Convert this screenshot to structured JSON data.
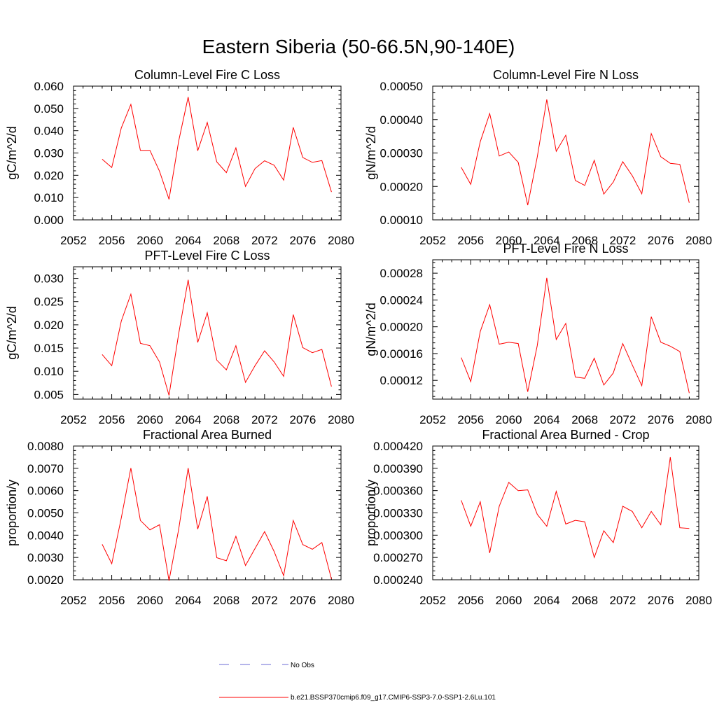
{
  "figure": {
    "title": "Eastern Siberia (50-66.5N,90-140E)"
  },
  "colors": {
    "series": "#ff0000",
    "obs": "#6b6bd6",
    "axis": "#000000"
  },
  "legend": {
    "placement": "bottom-center",
    "entries": [
      {
        "label": "No Obs",
        "style": "dashed",
        "color": "#6b6bd6"
      },
      {
        "label": "b.e21.BSSP370cmip6.f09_g17.CMIP6-SSP3-7.0-SSP1-2.6Lu.101",
        "style": "solid",
        "color": "#ff0000"
      }
    ]
  },
  "chart_data": [
    {
      "type": "line",
      "title": "Column-Level Fire C Loss",
      "ylabel": "gC/m^2/d",
      "xlim": [
        2052,
        2080
      ],
      "ylim": [
        0.0,
        0.06
      ],
      "xticks": [
        "2052",
        "2056",
        "2060",
        "2064",
        "2068",
        "2072",
        "2076",
        "2080"
      ],
      "yticks": [
        "0.000",
        "0.010",
        "0.020",
        "0.030",
        "0.040",
        "0.050",
        "0.060"
      ],
      "x": [
        2055,
        2056,
        2057,
        2058,
        2059,
        2060,
        2061,
        2062,
        2063,
        2064,
        2065,
        2066,
        2067,
        2068,
        2069,
        2070,
        2071,
        2072,
        2073,
        2074,
        2075,
        2076,
        2077,
        2078,
        2079
      ],
      "series": [
        {
          "values": [
            0.0272,
            0.0235,
            0.0412,
            0.0518,
            0.0312,
            0.0312,
            0.0218,
            0.0092,
            0.0352,
            0.0551,
            0.031,
            0.0437,
            0.026,
            0.0212,
            0.0323,
            0.015,
            0.023,
            0.0265,
            0.0245,
            0.0178,
            0.0415,
            0.028,
            0.0258,
            0.0266,
            0.0125
          ]
        }
      ]
    },
    {
      "type": "line",
      "title": "Column-Level Fire N Loss",
      "ylabel": "gN/m^2/d",
      "xlim": [
        2052,
        2080
      ],
      "ylim": [
        0.0001,
        0.0005
      ],
      "xticks": [
        "2052",
        "2056",
        "2060",
        "2064",
        "2068",
        "2072",
        "2076",
        "2080"
      ],
      "yticks": [
        "0.00010",
        "0.00020",
        "0.00030",
        "0.00040",
        "0.00050"
      ],
      "x": [
        2055,
        2056,
        2057,
        2058,
        2059,
        2060,
        2061,
        2062,
        2063,
        2064,
        2065,
        2066,
        2067,
        2068,
        2069,
        2070,
        2071,
        2072,
        2073,
        2074,
        2075,
        2076,
        2077,
        2078,
        2079
      ],
      "series": [
        {
          "values": [
            0.000257,
            0.000206,
            0.000334,
            0.000418,
            0.000291,
            0.000303,
            0.000272,
            0.000144,
            0.000288,
            0.00046,
            0.000305,
            0.000353,
            0.000218,
            0.000203,
            0.000278,
            0.000177,
            0.000213,
            0.000274,
            0.000232,
            0.000178,
            0.000358,
            0.000289,
            0.000269,
            0.000266,
            0.000151
          ]
        }
      ]
    },
    {
      "type": "line",
      "title": "PFT-Level Fire C Loss",
      "ylabel": "gC/m^2/d",
      "xlim": [
        2052,
        2080
      ],
      "ylim": [
        0.004,
        0.0325
      ],
      "xticks": [
        "2052",
        "2056",
        "2060",
        "2064",
        "2068",
        "2072",
        "2076",
        "2080"
      ],
      "yticks": [
        "0.005",
        "0.010",
        "0.015",
        "0.020",
        "0.025",
        "0.030"
      ],
      "x": [
        2055,
        2056,
        2057,
        2058,
        2059,
        2060,
        2061,
        2062,
        2063,
        2064,
        2065,
        2066,
        2067,
        2068,
        2069,
        2070,
        2071,
        2072,
        2073,
        2074,
        2075,
        2076,
        2077,
        2078,
        2079
      ],
      "series": [
        {
          "values": [
            0.0136,
            0.0112,
            0.0208,
            0.0266,
            0.016,
            0.0155,
            0.012,
            0.0048,
            0.018,
            0.0297,
            0.0162,
            0.0226,
            0.0124,
            0.0103,
            0.0155,
            0.0076,
            0.0112,
            0.0144,
            0.012,
            0.0089,
            0.0222,
            0.0151,
            0.014,
            0.0147,
            0.0067
          ]
        }
      ]
    },
    {
      "type": "line",
      "title": "PFT-Level Fire N Loss",
      "ylabel": "gN/m^2/d",
      "xlim": [
        2052,
        2080
      ],
      "ylim": [
        9.2e-05,
        0.0003
      ],
      "xticks": [
        "2052",
        "2056",
        "2060",
        "2064",
        "2068",
        "2072",
        "2076",
        "2080"
      ],
      "yticks": [
        "0.00012",
        "0.00016",
        "0.00020",
        "0.00024",
        "0.00028"
      ],
      "x": [
        2055,
        2056,
        2057,
        2058,
        2059,
        2060,
        2061,
        2062,
        2063,
        2064,
        2065,
        2066,
        2067,
        2068,
        2069,
        2070,
        2071,
        2072,
        2073,
        2074,
        2075,
        2076,
        2077,
        2078,
        2079
      ],
      "series": [
        {
          "values": [
            0.000154,
            0.000118,
            0.000193,
            0.000233,
            0.000174,
            0.000177,
            0.000175,
            0.000103,
            0.000172,
            0.000273,
            0.000181,
            0.000205,
            0.000125,
            0.000123,
            0.000153,
            0.000113,
            0.000131,
            0.000175,
            0.000143,
            0.000112,
            0.000215,
            0.000177,
            0.000171,
            0.000163,
            0.000101
          ]
        }
      ]
    },
    {
      "type": "line",
      "title": "Fractional Area Burned",
      "ylabel": "proportion/y",
      "xlim": [
        2052,
        2080
      ],
      "ylim": [
        0.002,
        0.008
      ],
      "xticks": [
        "2052",
        "2056",
        "2060",
        "2064",
        "2068",
        "2072",
        "2076",
        "2080"
      ],
      "yticks": [
        "0.0020",
        "0.0030",
        "0.0040",
        "0.0050",
        "0.0060",
        "0.0070",
        "0.0080"
      ],
      "x": [
        2055,
        2056,
        2057,
        2058,
        2059,
        2060,
        2061,
        2062,
        2063,
        2064,
        2065,
        2066,
        2067,
        2068,
        2069,
        2070,
        2071,
        2072,
        2073,
        2074,
        2075,
        2076,
        2077,
        2078,
        2079
      ],
      "series": [
        {
          "values": [
            0.00359,
            0.00272,
            0.00477,
            0.00701,
            0.00466,
            0.00424,
            0.00447,
            0.00196,
            0.00425,
            0.00701,
            0.00427,
            0.00574,
            0.00299,
            0.00285,
            0.00395,
            0.00264,
            0.0034,
            0.00416,
            0.00327,
            0.00218,
            0.00466,
            0.00358,
            0.00337,
            0.00367,
            0.00203
          ]
        }
      ]
    },
    {
      "type": "line",
      "title": "Fractional Area Burned - Crop",
      "ylabel": "proportion/y",
      "xlim": [
        2052,
        2080
      ],
      "ylim": [
        0.00024,
        0.00042
      ],
      "xticks": [
        "2052",
        "2056",
        "2060",
        "2064",
        "2068",
        "2072",
        "2076",
        "2080"
      ],
      "yticks": [
        "0.000240",
        "0.000270",
        "0.000300",
        "0.000330",
        "0.000360",
        "0.000390",
        "0.000420"
      ],
      "x": [
        2055,
        2056,
        2057,
        2058,
        2059,
        2060,
        2061,
        2062,
        2063,
        2064,
        2065,
        2066,
        2067,
        2068,
        2069,
        2070,
        2071,
        2072,
        2073,
        2074,
        2075,
        2076,
        2077,
        2078,
        2079
      ],
      "series": [
        {
          "values": [
            0.000347,
            0.000312,
            0.000345,
            0.000276,
            0.000339,
            0.000371,
            0.00036,
            0.000361,
            0.000328,
            0.000312,
            0.000359,
            0.000315,
            0.00032,
            0.000318,
            0.00027,
            0.000306,
            0.00029,
            0.000339,
            0.000332,
            0.00031,
            0.000332,
            0.000314,
            0.000405,
            0.00031,
            0.000309
          ]
        }
      ]
    }
  ]
}
